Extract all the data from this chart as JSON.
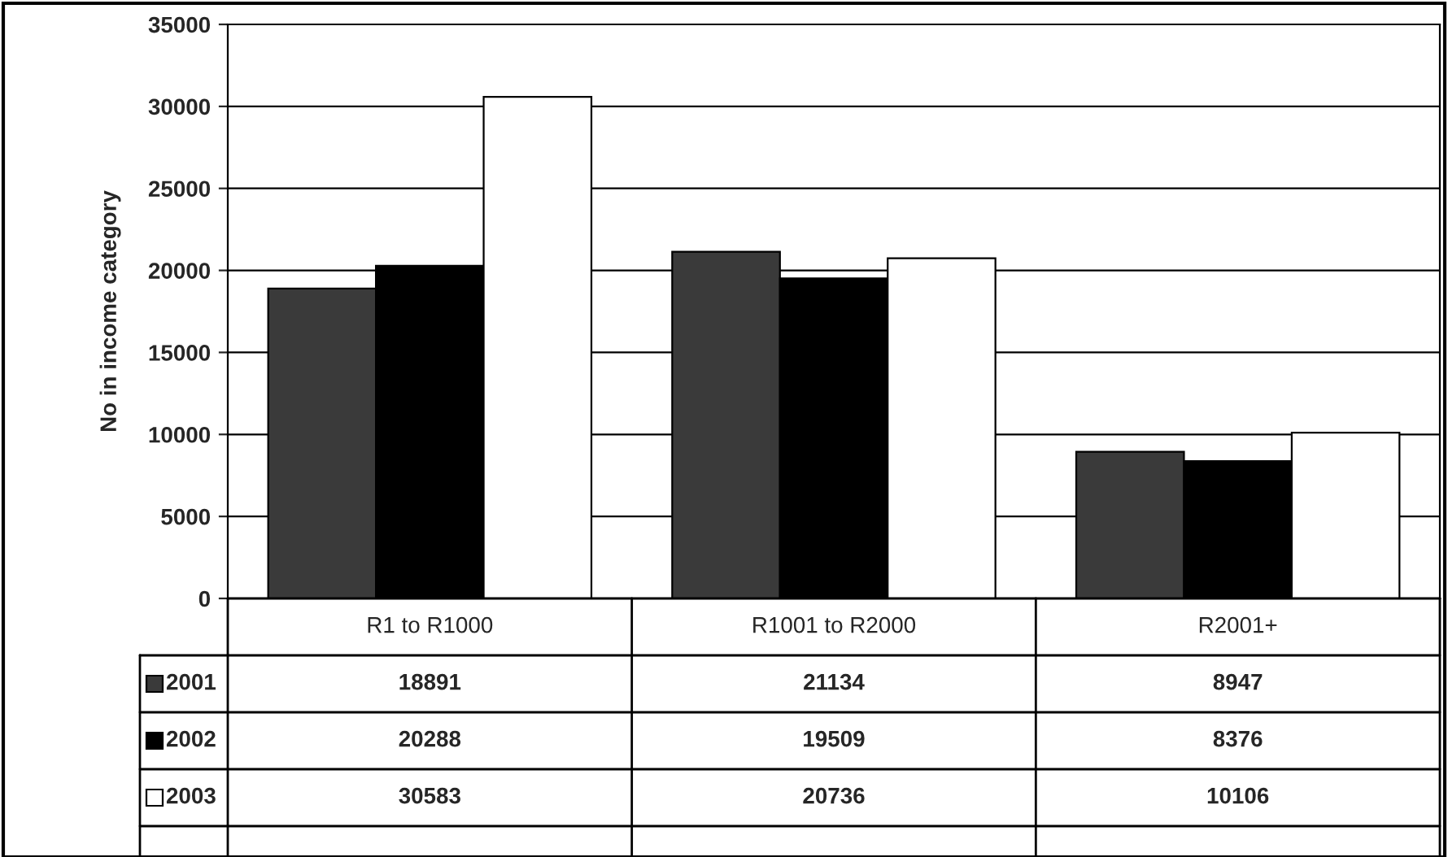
{
  "chart_data": {
    "type": "bar",
    "ylabel": "No in income category",
    "categories": [
      "R1 to R1000",
      "R1001 to R2000",
      "R2001+"
    ],
    "series": [
      {
        "name": "2001",
        "color": "#3a3a3a",
        "values": [
          18891,
          21134,
          8947
        ]
      },
      {
        "name": "2002",
        "color": "#000000",
        "values": [
          20288,
          19509,
          8376
        ]
      },
      {
        "name": "2003",
        "color": "#ffffff",
        "values": [
          30583,
          20736,
          10106
        ]
      }
    ],
    "ylim": [
      0,
      35000
    ],
    "yticks": [
      0,
      5000,
      10000,
      15000,
      20000,
      25000,
      30000,
      35000
    ],
    "grid": "y",
    "data_labels": true,
    "legend": "bottom left"
  }
}
